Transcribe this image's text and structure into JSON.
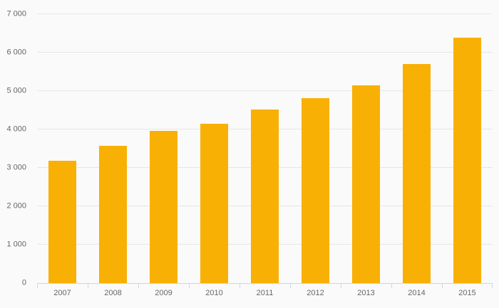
{
  "chart_data": {
    "type": "bar",
    "title": "",
    "xlabel": "",
    "ylabel": "",
    "categories": [
      "2007",
      "2008",
      "2009",
      "2010",
      "2011",
      "2012",
      "2013",
      "2014",
      "2015"
    ],
    "values": [
      3180,
      3580,
      3970,
      4140,
      4520,
      4820,
      5140,
      5700,
      6390
    ],
    "ylim": [
      0,
      7000
    ],
    "yticks": [
      0,
      1000,
      2000,
      3000,
      4000,
      5000,
      6000,
      7000
    ],
    "ytick_labels": [
      "0",
      "1 000",
      "2 000",
      "3 000",
      "4 000",
      "5 000",
      "6 000",
      "7 000"
    ],
    "grid": true,
    "legend": false,
    "bar_width_fraction": 0.55,
    "colors": {
      "bar": "#f9b005",
      "grid": "#e6e6e6",
      "axis": "#ccd6eb",
      "label": "#666666",
      "background": "#fafafa"
    }
  }
}
